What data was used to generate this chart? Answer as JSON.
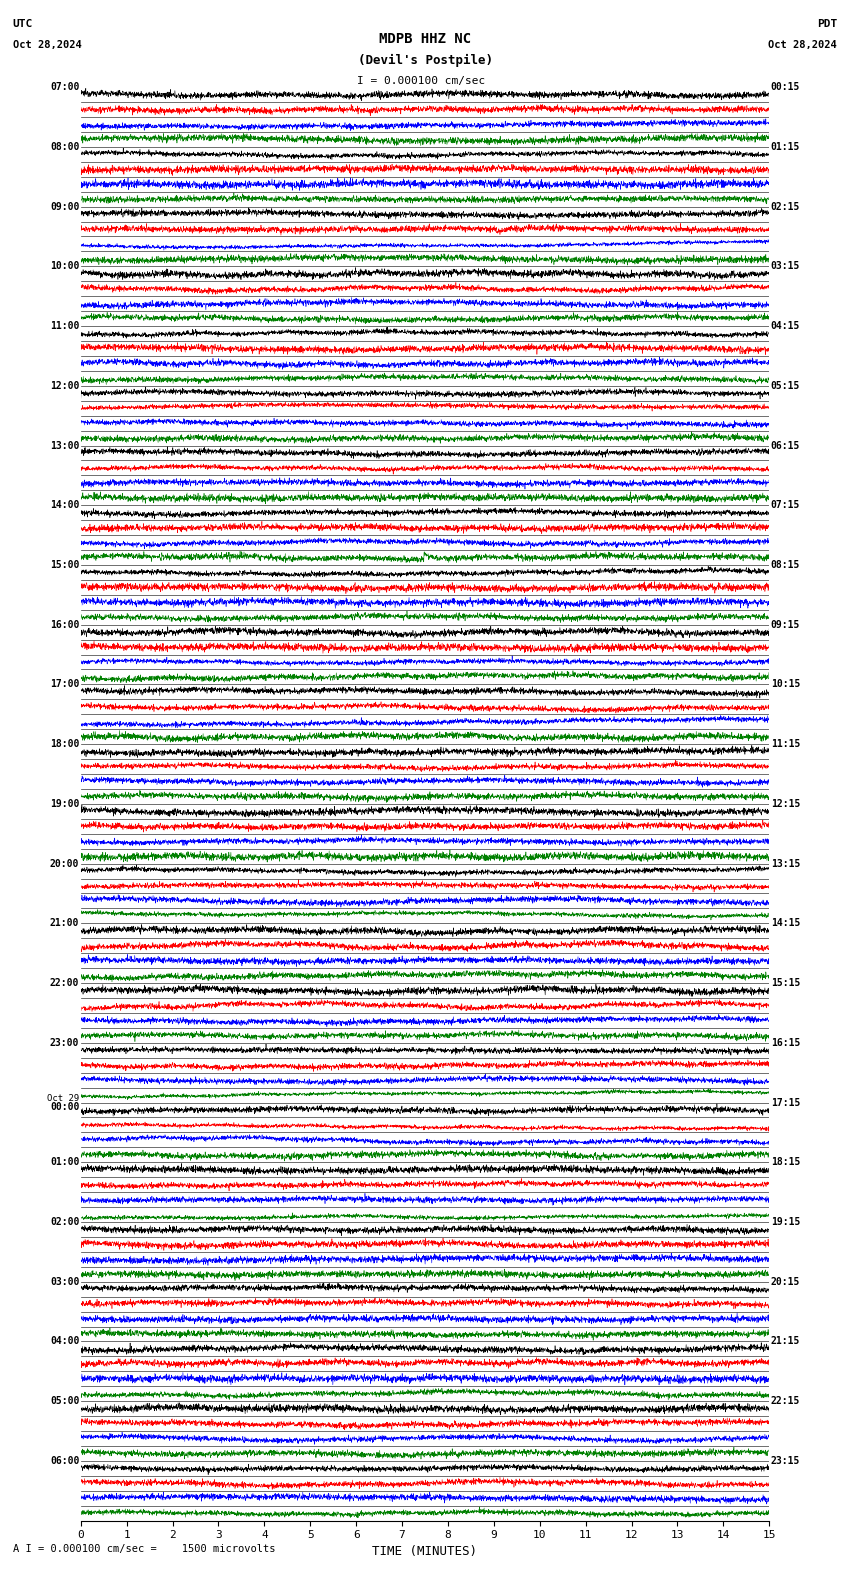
{
  "title_line1": "MDPB HHZ NC",
  "title_line2": "(Devil's Postpile)",
  "scale_label": "I = 0.000100 cm/sec",
  "utc_label": "UTC",
  "pdt_label": "PDT",
  "date_left": "Oct 28,2024",
  "date_right": "Oct 28,2024",
  "bottom_label": "A I = 0.000100 cm/sec =    1500 microvolts",
  "xlabel": "TIME (MINUTES)",
  "left_times_hourly": [
    "07:00",
    "08:00",
    "09:00",
    "10:00",
    "11:00",
    "12:00",
    "13:00",
    "14:00",
    "15:00",
    "16:00",
    "17:00",
    "18:00",
    "19:00",
    "20:00",
    "21:00",
    "22:00",
    "23:00",
    "Oct 29\n00:00",
    "01:00",
    "02:00",
    "03:00",
    "04:00",
    "05:00",
    "06:00"
  ],
  "right_times_hourly": [
    "00:15",
    "01:15",
    "02:15",
    "03:15",
    "04:15",
    "05:15",
    "06:15",
    "07:15",
    "08:15",
    "09:15",
    "10:15",
    "11:15",
    "12:15",
    "13:15",
    "14:15",
    "15:15",
    "16:15",
    "17:15",
    "18:15",
    "19:15",
    "20:15",
    "21:15",
    "22:15",
    "23:15"
  ],
  "colors": [
    "black",
    "red",
    "blue",
    "green"
  ],
  "bg_color": "#ffffff",
  "n_hours": 24,
  "n_colors": 4,
  "minutes": 15,
  "fig_width": 8.5,
  "fig_height": 15.84,
  "dpi": 100,
  "trace_points": 3000,
  "noise_amp": 0.35,
  "lf_amp_min": 0.1,
  "lf_amp_max": 0.55,
  "hf_amp_min": 0.05,
  "hf_amp_max": 0.25,
  "spike_prob": 0.08,
  "spike_amp_min": 0.5,
  "spike_amp_max": 1.5,
  "large_lf_prob": 0.12,
  "large_lf_amp_min": 0.5,
  "large_lf_amp_max": 1.2
}
